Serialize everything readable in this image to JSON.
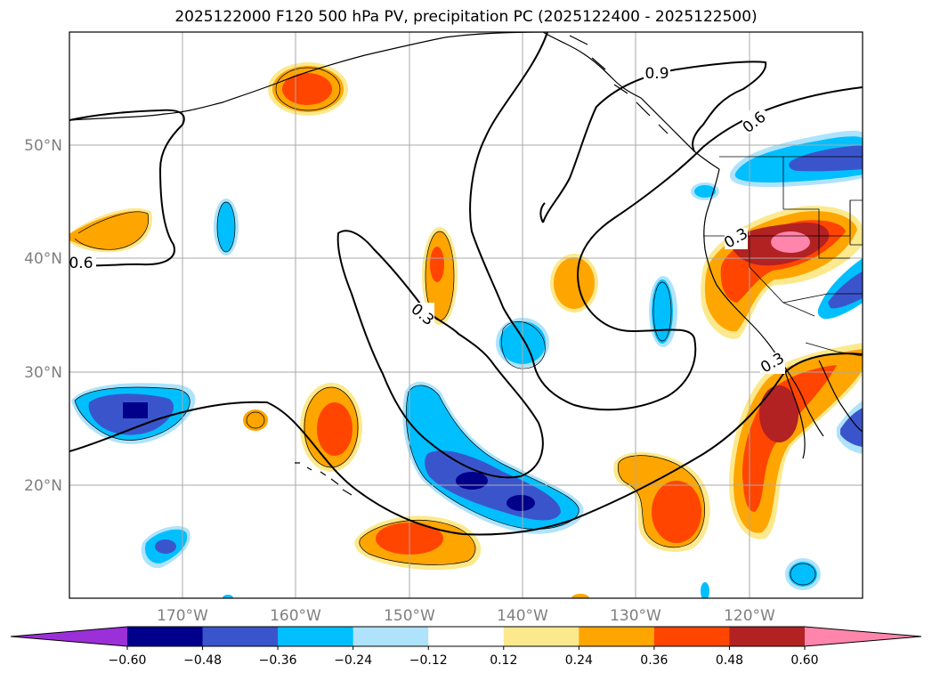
{
  "title": "2025122000 F120 500 hPa PV, precipitation PC (2025122400 - 2025122500)",
  "map": {
    "lon_range": [
      -180,
      -110
    ],
    "lat_range": [
      10,
      60
    ],
    "grid": true,
    "lat_labels": [
      "20°N",
      "30°N",
      "40°N",
      "50°N"
    ],
    "lon_labels": [
      "170°W",
      "160°W",
      "150°W",
      "140°W",
      "130°W",
      "120°W"
    ]
  },
  "pv_contour_labels": [
    "0.9",
    "0.6",
    "0.6",
    "0.3",
    "0.3",
    "0.3"
  ],
  "colorbar": {
    "colors": [
      "#9b30d8",
      "#00008b",
      "#3a55cc",
      "#00bfff",
      "#aee3fb",
      "#ffffff",
      "#fce98e",
      "#ffa500",
      "#ff4500",
      "#b22222",
      "#ff85ad"
    ],
    "labels": [
      "−0.60",
      "−0.48",
      "−0.36",
      "−0.24",
      "−0.12",
      "0.12",
      "0.24",
      "0.36",
      "0.48",
      "0.60"
    ]
  }
}
